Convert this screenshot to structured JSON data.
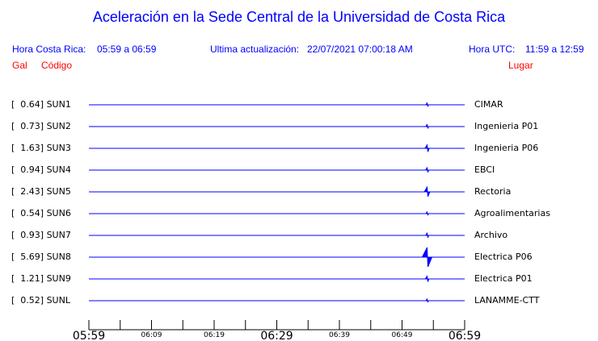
{
  "header": {
    "title": "Aceleración en la Sede Central de la Universidad de Costa Rica",
    "local_label": "Hora Costa Rica:",
    "local_range": "05:59 a 06:59",
    "update_label": "Ultima actualización:",
    "update_value": "22/07/2021 07:00:18 AM",
    "utc_label": "Hora UTC:",
    "utc_range": "11:59 a 12:59",
    "col_gal": "Gal",
    "col_code": "Código",
    "col_place": "Lugar"
  },
  "chart_data": {
    "type": "line",
    "xlim": [
      "05:59",
      "06:59"
    ],
    "xticks_major": [
      "05:59",
      "06:29",
      "06:59"
    ],
    "xticks_minor": [
      "06:09",
      "06:19",
      "06:39",
      "06:49"
    ],
    "tick_interval_min": 5,
    "event_time": "06:53",
    "color": "#0000ff",
    "stations": [
      {
        "label": "[   0.64] SUN1",
        "code": "SUN1",
        "gal": 0.64,
        "place": "CIMAR"
      },
      {
        "label": "[   0.73] SUN2",
        "code": "SUN2",
        "gal": 0.73,
        "place": "Ingenieria P01"
      },
      {
        "label": "[   1.63] SUN3",
        "code": "SUN3",
        "gal": 1.63,
        "place": "Ingenieria P06"
      },
      {
        "label": "[   0.94] SUN4",
        "code": "SUN4",
        "gal": 0.94,
        "place": "EBCI"
      },
      {
        "label": "[   2.43] SUN5",
        "code": "SUN5",
        "gal": 2.43,
        "place": "Rectoria"
      },
      {
        "label": "[   0.54] SUN6",
        "code": "SUN6",
        "gal": 0.54,
        "place": "Agroalimentarias"
      },
      {
        "label": "[   0.93] SUN7",
        "code": "SUN7",
        "gal": 0.93,
        "place": "Archivo"
      },
      {
        "label": "[   5.69] SUN8",
        "code": "SUN8",
        "gal": 5.69,
        "place": "Electrica P06"
      },
      {
        "label": "[   1.21] SUN9",
        "code": "SUN9",
        "gal": 1.21,
        "place": "Electrica P01"
      },
      {
        "label": "[   0.52] SUNL",
        "code": "SUNL",
        "gal": 0.52,
        "place": "LANAMME-CTT"
      }
    ]
  }
}
